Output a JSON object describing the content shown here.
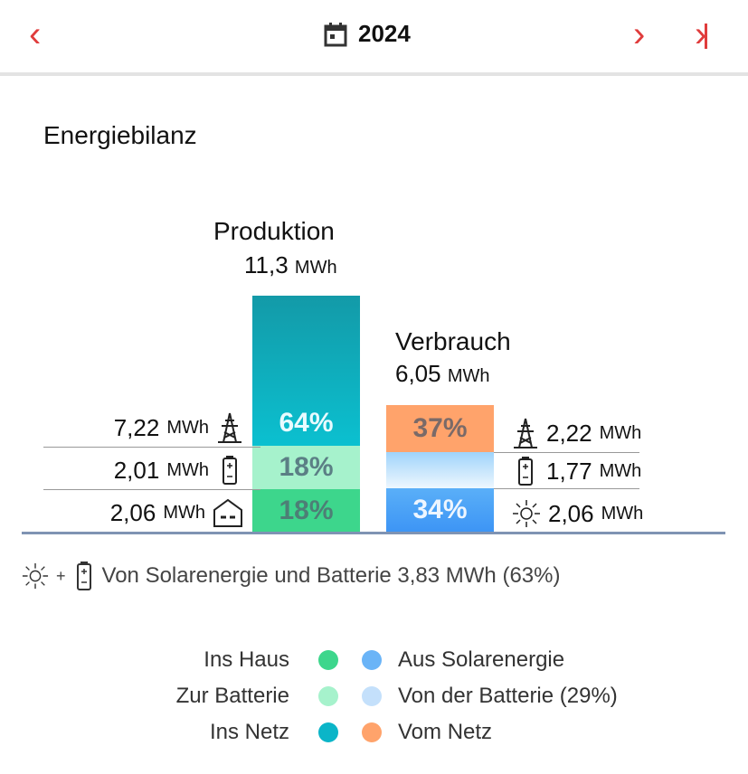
{
  "header": {
    "year": "2024"
  },
  "title": "Energiebilanz",
  "production": {
    "label": "Produktion",
    "value": "11,3",
    "unit": "MWh",
    "segments": [
      {
        "name": "Ins Netz",
        "percent": "64%",
        "value": "7,22",
        "unit": "MWh",
        "icon": "power-pylon-icon",
        "color": "#0bb5c8"
      },
      {
        "name": "Zur Batterie",
        "percent": "18%",
        "value": "2,01",
        "unit": "MWh",
        "icon": "battery-icon",
        "color": "#a6f2cc"
      },
      {
        "name": "Ins Haus",
        "percent": "18%",
        "value": "2,06",
        "unit": "MWh",
        "icon": "house-icon",
        "color": "#3dd68c"
      }
    ]
  },
  "consumption": {
    "label": "Verbrauch",
    "value": "6,05",
    "unit": "MWh",
    "segments": [
      {
        "name": "Vom Netz",
        "percent": "37%",
        "value": "2,22",
        "unit": "MWh",
        "icon": "power-pylon-icon",
        "color": "#ffa36b"
      },
      {
        "name": "Von der Batterie",
        "percent": "",
        "value": "1,77",
        "unit": "MWh",
        "icon": "battery-icon",
        "color": "#bfe2fb"
      },
      {
        "name": "Aus Solarenergie",
        "percent": "34%",
        "value": "2,06",
        "unit": "MWh",
        "icon": "sun-icon",
        "color": "#4ea3f7"
      }
    ]
  },
  "summary": {
    "plus": "+",
    "text": "Von Solarenergie und Batterie 3,83 MWh (63%)"
  },
  "legend": {
    "left": [
      "Ins Haus",
      "Zur Batterie",
      "Ins Netz"
    ],
    "right": [
      "Aus Solarenergie",
      "Von der Batterie (29%)",
      "Vom Netz"
    ],
    "left_colors": [
      "#3dd68c",
      "#a6f2cc",
      "#0bb5c8"
    ],
    "right_colors": [
      "#6ab4f7",
      "#c4e0fb",
      "#ffa36b"
    ]
  }
}
